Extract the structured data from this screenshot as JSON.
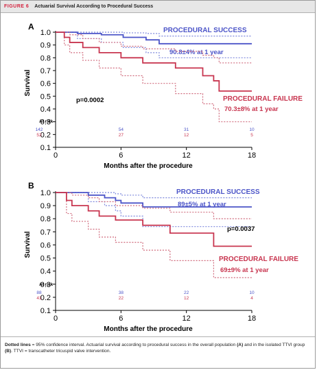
{
  "header": {
    "figure_label": "FIGURE 6",
    "title": "Actuarial Survival According to Procedural Success"
  },
  "caption": {
    "lead": "Dotted lines",
    "text_1": " = 95% confidence interval. Actuarial survival according to procedural success in the overall population ",
    "panel_a": "(A)",
    "text_2": " and in the isolated TTVI group ",
    "panel_b": "(B)",
    "text_3": ". TTVI = transcatheter tricuspid valve intervention."
  },
  "colors": {
    "success": "#4b54c8",
    "success_ci": "#7b86dc",
    "failure": "#c8354f",
    "failure_ci": "#d06a7c",
    "axis": "#000000"
  },
  "chart_data": [
    {
      "type": "line",
      "panel": "A",
      "xlabel": "Months after the procedure",
      "ylabel": "Survival",
      "xlim": [
        0,
        18
      ],
      "ylim": [
        0.1,
        1.0
      ],
      "xticks": [
        "0",
        "6",
        "12",
        "18"
      ],
      "yticks": [
        "1.0",
        "0.9",
        "0.8",
        "0.7",
        "0.6",
        "0.5",
        "0.4",
        "0.3",
        "0.2",
        "0.1"
      ],
      "grid": false,
      "p_value": "p=0.0002",
      "series": [
        {
          "name": "PROCEDURAL SUCCESS",
          "annotation": "90.8±4% at 1 year",
          "role": "success",
          "x": [
            0,
            1.8,
            2.0,
            4.0,
            4.2,
            6.0,
            6.2,
            8.0,
            8.3,
            9.5,
            18
          ],
          "y": [
            1.0,
            1.0,
            0.99,
            0.99,
            0.98,
            0.98,
            0.96,
            0.96,
            0.94,
            0.91,
            0.91
          ],
          "ci_lower": [
            1.0,
            1.0,
            0.95,
            0.95,
            0.92,
            0.92,
            0.88,
            0.88,
            0.84,
            0.8,
            0.8
          ],
          "ci_upper": [
            1.0,
            1.0,
            1.0,
            1.0,
            1.0,
            1.0,
            0.995,
            0.995,
            0.99,
            0.97,
            0.97
          ]
        },
        {
          "name": "PROCEDURAL FAILURE",
          "annotation": "70.3±8% at 1 year",
          "role": "failure",
          "x": [
            0,
            0.8,
            1.3,
            2.5,
            4.0,
            6.0,
            8.0,
            11.0,
            13.5,
            14.5,
            15.0,
            18
          ],
          "y": [
            1.0,
            0.96,
            0.92,
            0.88,
            0.84,
            0.8,
            0.76,
            0.72,
            0.66,
            0.62,
            0.54,
            0.54
          ],
          "ci_lower": [
            1.0,
            0.9,
            0.84,
            0.78,
            0.72,
            0.66,
            0.6,
            0.52,
            0.44,
            0.4,
            0.3,
            0.3
          ],
          "ci_upper": [
            1.0,
            1.0,
            0.98,
            0.95,
            0.92,
            0.89,
            0.87,
            0.85,
            0.82,
            0.8,
            0.76,
            0.76
          ]
        }
      ],
      "at_risk": {
        "label": "At risk",
        "times": [
          0,
          6,
          12,
          18
        ],
        "success": [
          "142",
          "54",
          "31",
          "10"
        ],
        "failure": [
          "52",
          "27",
          "12",
          "5"
        ]
      }
    },
    {
      "type": "line",
      "panel": "B",
      "xlabel": "Months after the procedure",
      "ylabel": "Survival",
      "xlim": [
        0,
        18
      ],
      "ylim": [
        0.1,
        1.0
      ],
      "xticks": [
        "0",
        "6",
        "12",
        "18"
      ],
      "yticks": [
        "1.0",
        "0.9",
        "0.8",
        "0.7",
        "0.6",
        "0.5",
        "0.4",
        "0.3",
        "0.2",
        "0.1"
      ],
      "grid": false,
      "p_value": "p=0.0037",
      "series": [
        {
          "name": "PROCEDURAL SUCCESS",
          "annotation": "89±5% at 1 year",
          "role": "success",
          "x": [
            0,
            2.5,
            3.0,
            4.5,
            5.5,
            6.0,
            8.0,
            18
          ],
          "y": [
            1.0,
            1.0,
            0.98,
            0.96,
            0.94,
            0.92,
            0.89,
            0.89
          ],
          "ci_lower": [
            1.0,
            1.0,
            0.93,
            0.9,
            0.86,
            0.82,
            0.74,
            0.74
          ],
          "ci_upper": [
            1.0,
            1.0,
            1.0,
            1.0,
            0.99,
            0.98,
            0.96,
            0.96
          ]
        },
        {
          "name": "PROCEDURAL FAILURE",
          "annotation": "69±9% at 1 year",
          "role": "failure",
          "x": [
            0,
            1.0,
            1.5,
            3.0,
            4.0,
            5.5,
            8.0,
            10.5,
            14.5,
            18
          ],
          "y": [
            1.0,
            0.94,
            0.9,
            0.86,
            0.82,
            0.79,
            0.75,
            0.69,
            0.59,
            0.59
          ],
          "ci_lower": [
            1.0,
            0.84,
            0.78,
            0.72,
            0.66,
            0.62,
            0.56,
            0.48,
            0.35,
            0.35
          ],
          "ci_upper": [
            1.0,
            1.0,
            0.98,
            0.96,
            0.93,
            0.9,
            0.88,
            0.85,
            0.8,
            0.8
          ]
        }
      ],
      "at_risk": {
        "label": "At risk",
        "times": [
          0,
          6,
          12,
          18
        ],
        "success": [
          "88",
          "38",
          "22",
          "10"
        ],
        "failure": [
          "41",
          "22",
          "12",
          "4"
        ]
      }
    }
  ]
}
